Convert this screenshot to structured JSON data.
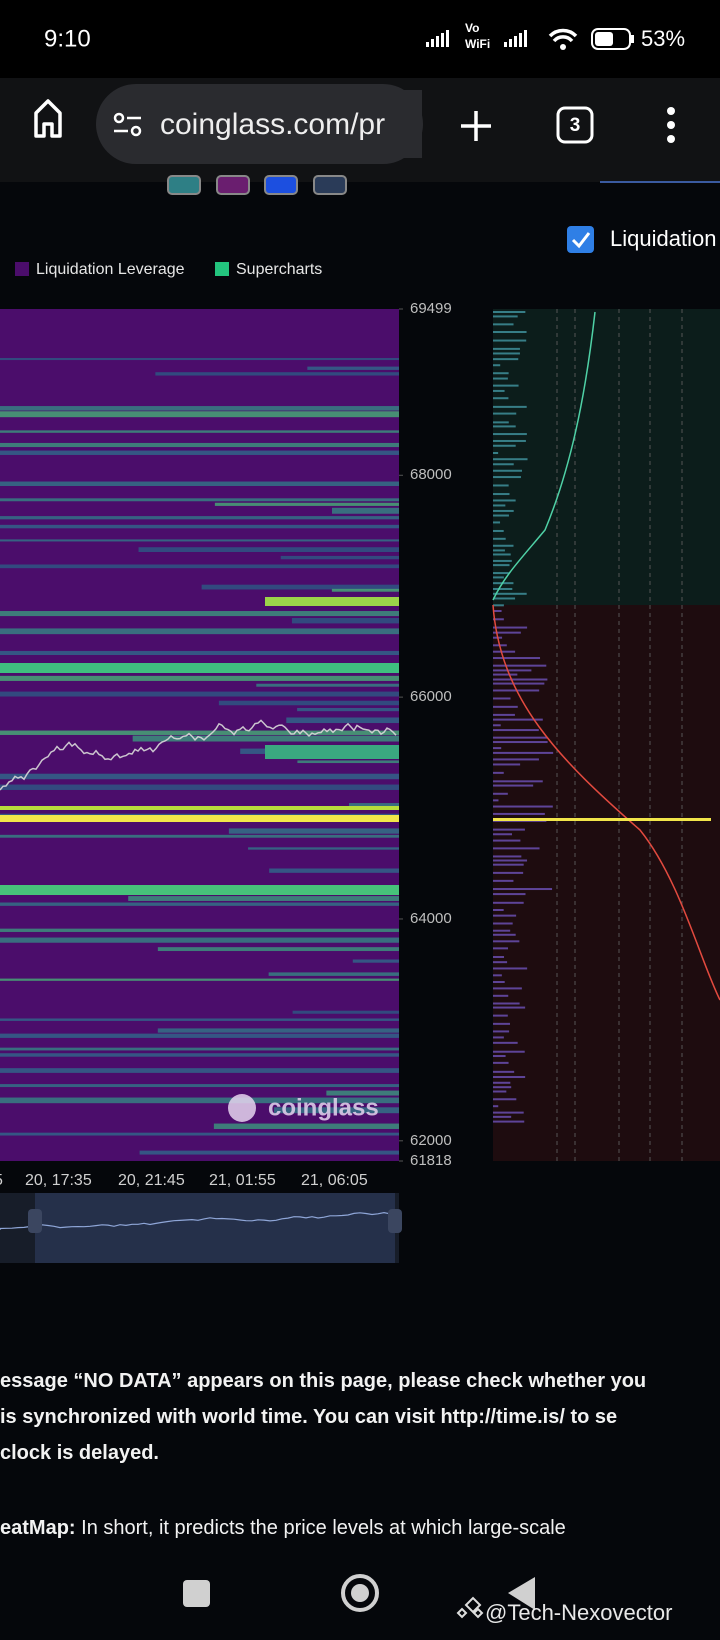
{
  "status_bar": {
    "time": "9:10",
    "network_top": "Vo",
    "network_bottom": "WiFi",
    "battery": "53%"
  },
  "browser": {
    "url": "coinglass.com/pr",
    "tabs": "3"
  },
  "toggle": {
    "label": "Liquidation"
  },
  "chart_data": {
    "type": "heatmap",
    "legend": [
      {
        "name": "Liquidation Leverage",
        "color": "#4b0d6b"
      },
      {
        "name": "Supercharts",
        "color": "#23c47e"
      }
    ],
    "ylim": [
      61818,
      69499
    ],
    "yticks": [
      61818,
      62000,
      64000,
      66000,
      68000,
      69499
    ],
    "x_labels": [
      "5",
      "20, 17:35",
      "20, 21:45",
      "21, 01:55",
      "21, 06:05"
    ],
    "watermark": "coinglass"
  },
  "notice": {
    "line1": "essage “NO DATA” appears on this page, please check whether you",
    "line2": " is synchronized with world time. You can visit http://time.is/ to se",
    "line3": "clock is delayed.",
    "line4_bold": "eatMap:",
    "line4_rest": " In short, it predicts the price levels at which large-scale"
  },
  "watermark": "@Tech-Nexovector"
}
